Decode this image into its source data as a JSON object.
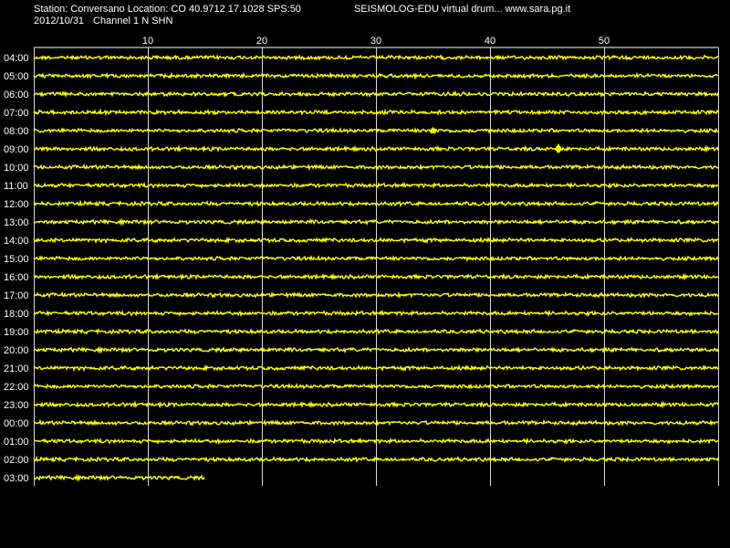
{
  "header": {
    "station_line": "Station: Conversano Location: CO 40.9712 17.1028 SPS:50",
    "title": "SEISMOLOG-EDU virtual drum... www.sara.pg.it",
    "date": "2012/10/31",
    "channel": "Channel 1 N SHN"
  },
  "colors": {
    "background": "#000000",
    "trace": "#ffff00",
    "grid": "#ffffff",
    "text": "#ffffff"
  },
  "chart_data": {
    "type": "line",
    "title": "",
    "xlabel": "",
    "ylabel": "",
    "xlim": [
      0,
      60
    ],
    "x_ticks": [
      10,
      20,
      30,
      40,
      50
    ],
    "grid": true,
    "rows": [
      {
        "label": "04:00",
        "end_minute": 60
      },
      {
        "label": "05:00",
        "end_minute": 60
      },
      {
        "label": "06:00",
        "end_minute": 60
      },
      {
        "label": "07:00",
        "end_minute": 60
      },
      {
        "label": "08:00",
        "end_minute": 60
      },
      {
        "label": "09:00",
        "end_minute": 60
      },
      {
        "label": "10:00",
        "end_minute": 60
      },
      {
        "label": "11:00",
        "end_minute": 60
      },
      {
        "label": "12:00",
        "end_minute": 60
      },
      {
        "label": "13:00",
        "end_minute": 60
      },
      {
        "label": "14:00",
        "end_minute": 60
      },
      {
        "label": "15:00",
        "end_minute": 60
      },
      {
        "label": "16:00",
        "end_minute": 60
      },
      {
        "label": "17:00",
        "end_minute": 60
      },
      {
        "label": "18:00",
        "end_minute": 60
      },
      {
        "label": "19:00",
        "end_minute": 60
      },
      {
        "label": "20:00",
        "end_minute": 60
      },
      {
        "label": "21:00",
        "end_minute": 60
      },
      {
        "label": "22:00",
        "end_minute": 60
      },
      {
        "label": "23:00",
        "end_minute": 60
      },
      {
        "label": "00:00",
        "end_minute": 60
      },
      {
        "label": "01:00",
        "end_minute": 60
      },
      {
        "label": "02:00",
        "end_minute": 60
      },
      {
        "label": "03:00",
        "end_minute": 15
      }
    ],
    "events": [
      {
        "row": "08:00",
        "minute": 35.0,
        "amplitude": 1.6
      },
      {
        "row": "09:00",
        "minute": 46.0,
        "amplitude": 2.4
      }
    ]
  }
}
